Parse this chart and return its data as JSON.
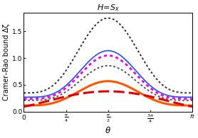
{
  "title": "H=S_x",
  "xlabel": "θ",
  "ylabel": "Cramer–Rao bound Δζ",
  "xlim": [
    0,
    3.14159265
  ],
  "ylim": [
    0.0,
    1.85
  ],
  "xtick_vals": [
    0,
    0.7853981633974483,
    1.5707963267948966,
    2.356194490192345,
    3.14159265
  ],
  "ytick_vals": [
    0.0,
    0.5,
    1.0,
    1.5
  ],
  "lines": [
    {
      "style": "dotted",
      "color": "#333333",
      "linewidth": 1.4,
      "peak": 1.75,
      "min_val": 0.35,
      "exp": 3.5
    },
    {
      "style": "solid",
      "color": "#3355ee",
      "linewidth": 1.3,
      "peak": 1.14,
      "min_val": 0.27,
      "exp": 4.0
    },
    {
      "style": "dotted",
      "color": "#ee00ee",
      "linewidth": 2.0,
      "peak": 1.05,
      "min_val": 0.24,
      "exp": 4.0
    },
    {
      "style": "dotted",
      "color": "#555555",
      "linewidth": 1.4,
      "peak": 0.86,
      "min_val": 0.21,
      "exp": 4.0
    },
    {
      "style": "solid",
      "color": "#ff5500",
      "linewidth": 2.2,
      "peak": 0.57,
      "min_val": 0.115,
      "exp": 3.5
    },
    {
      "style": "dashed",
      "color": "#dd0000",
      "linewidth": 2.2,
      "peak": 0.38,
      "min_val": 0.095,
      "exp": 1.2
    }
  ],
  "background_color": "#ffffff",
  "title_fontsize": 8,
  "label_fontsize": 7.5,
  "tick_fontsize": 6.5
}
